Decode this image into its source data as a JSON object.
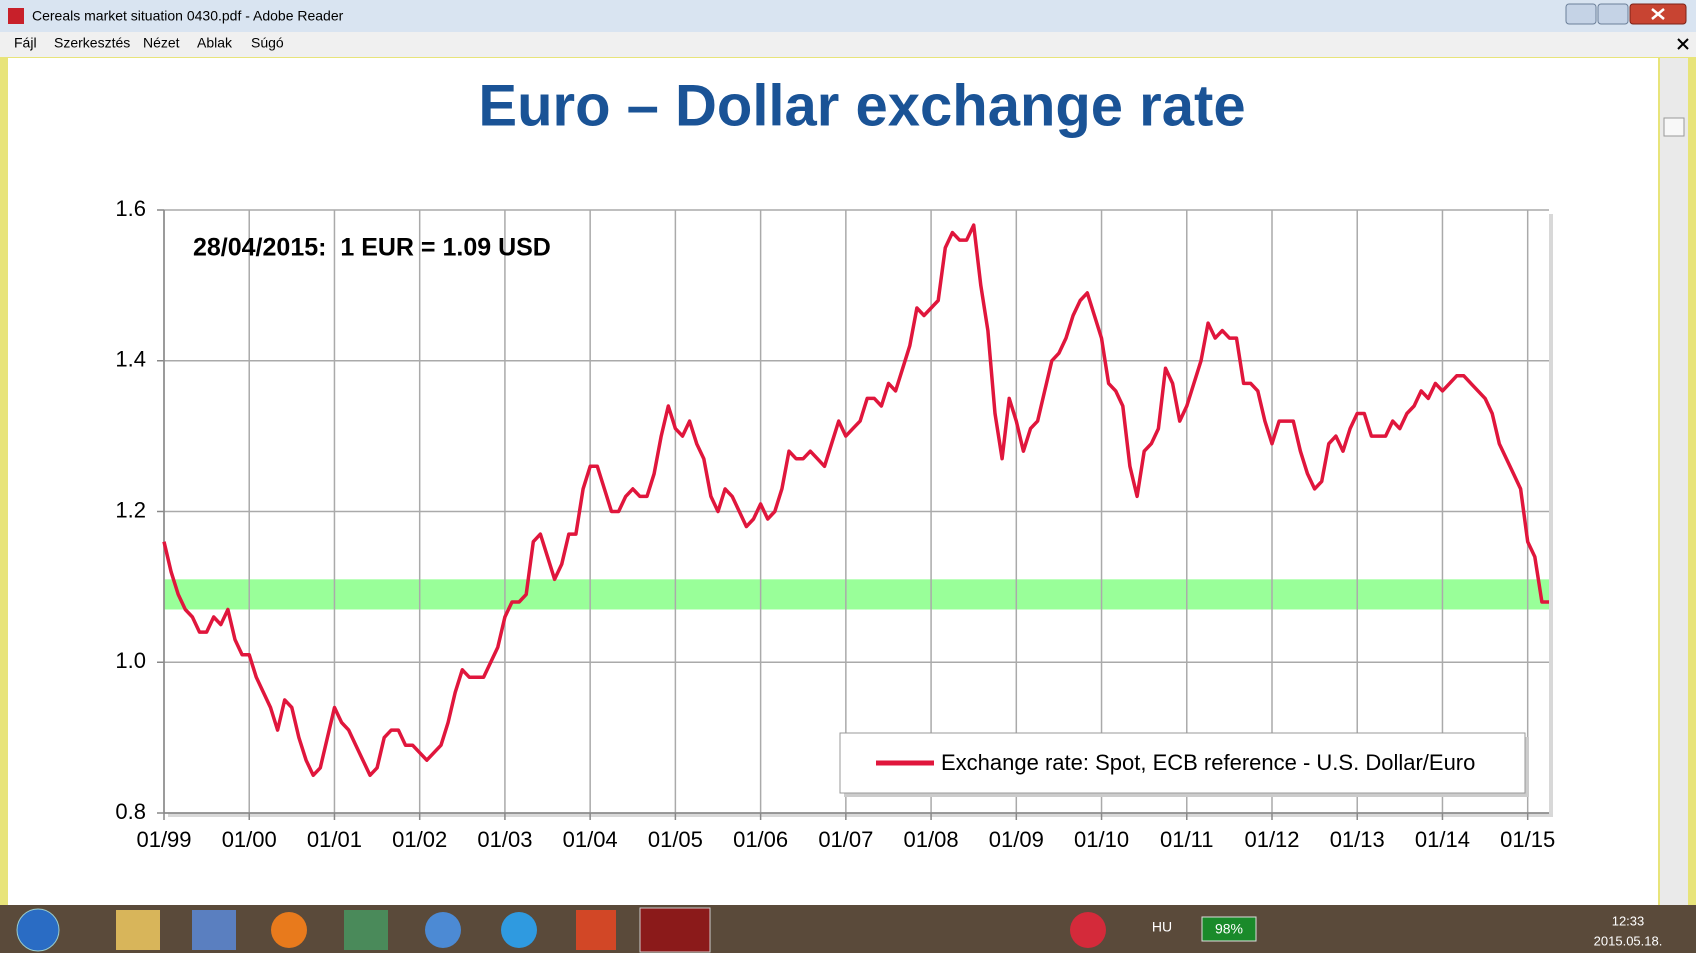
{
  "window": {
    "title": "Cereals market situation 0430.pdf - Adobe Reader"
  },
  "menu": [
    "Fájl",
    "Szerkesztés",
    "Nézet",
    "Ablak",
    "Súgó"
  ],
  "taskbar": {
    "language": "HU",
    "battery": "98%",
    "time": "12:33",
    "date": "2015.05.18."
  },
  "chart_data": {
    "type": "line",
    "title": "Euro – Dollar exchange rate",
    "annotation": "28/04/2015:  1 EUR = 1.09 USD",
    "band": [
      1.07,
      1.11
    ],
    "band_color": "#99ff99",
    "grid": true,
    "legend": "bottom-right",
    "ylim": [
      0.8,
      1.6
    ],
    "yticks": [
      0.8,
      {
        "value": 1,
        "label": "1.0"
      },
      1.2,
      1.4,
      1.6
    ],
    "xlim": [
      "1999-01",
      "2015-04"
    ],
    "xticks": [
      {
        "value": "1999-01",
        "label": "01/99"
      },
      {
        "value": "2000-01",
        "label": "01/00"
      },
      {
        "value": "2001-01",
        "label": "01/01"
      },
      {
        "value": "2002-01",
        "label": "01/02"
      },
      {
        "value": "2003-01",
        "label": "01/03"
      },
      {
        "value": "2004-01",
        "label": "01/04"
      },
      {
        "value": "2005-01",
        "label": "01/05"
      },
      {
        "value": "2006-01",
        "label": "01/06"
      },
      {
        "value": "2007-01",
        "label": "01/07"
      },
      {
        "value": "2008-01",
        "label": "01/08"
      },
      {
        "value": "2009-01",
        "label": "01/09"
      },
      {
        "value": "2010-01",
        "label": "01/10"
      },
      {
        "value": "2011-01",
        "label": "01/11"
      },
      {
        "value": "2012-01",
        "label": "01/12"
      },
      {
        "value": "2013-01",
        "label": "01/13"
      },
      {
        "value": "2014-01",
        "label": "01/14"
      },
      {
        "value": "2015-01",
        "label": "01/15"
      }
    ],
    "x": [
      "1999-01",
      "1999-02",
      "1999-03",
      "1999-04",
      "1999-05",
      "1999-06",
      "1999-07",
      "1999-08",
      "1999-09",
      "1999-10",
      "1999-11",
      "1999-12",
      "2000-01",
      "2000-02",
      "2000-03",
      "2000-04",
      "2000-05",
      "2000-06",
      "2000-07",
      "2000-08",
      "2000-09",
      "2000-10",
      "2000-11",
      "2000-12",
      "2001-01",
      "2001-02",
      "2001-03",
      "2001-04",
      "2001-05",
      "2001-06",
      "2001-07",
      "2001-08",
      "2001-09",
      "2001-10",
      "2001-11",
      "2001-12",
      "2002-01",
      "2002-02",
      "2002-03",
      "2002-04",
      "2002-05",
      "2002-06",
      "2002-07",
      "2002-08",
      "2002-09",
      "2002-10",
      "2002-11",
      "2002-12",
      "2003-01",
      "2003-02",
      "2003-03",
      "2003-04",
      "2003-05",
      "2003-06",
      "2003-07",
      "2003-08",
      "2003-09",
      "2003-10",
      "2003-11",
      "2003-12",
      "2004-01",
      "2004-02",
      "2004-03",
      "2004-04",
      "2004-05",
      "2004-06",
      "2004-07",
      "2004-08",
      "2004-09",
      "2004-10",
      "2004-11",
      "2004-12",
      "2005-01",
      "2005-02",
      "2005-03",
      "2005-04",
      "2005-05",
      "2005-06",
      "2005-07",
      "2005-08",
      "2005-09",
      "2005-10",
      "2005-11",
      "2005-12",
      "2006-01",
      "2006-02",
      "2006-03",
      "2006-04",
      "2006-05",
      "2006-06",
      "2006-07",
      "2006-08",
      "2006-09",
      "2006-10",
      "2006-11",
      "2006-12",
      "2007-01",
      "2007-02",
      "2007-03",
      "2007-04",
      "2007-05",
      "2007-06",
      "2007-07",
      "2007-08",
      "2007-09",
      "2007-10",
      "2007-11",
      "2007-12",
      "2008-01",
      "2008-02",
      "2008-03",
      "2008-04",
      "2008-05",
      "2008-06",
      "2008-07",
      "2008-08",
      "2008-09",
      "2008-10",
      "2008-11",
      "2008-12",
      "2009-01",
      "2009-02",
      "2009-03",
      "2009-04",
      "2009-05",
      "2009-06",
      "2009-07",
      "2009-08",
      "2009-09",
      "2009-10",
      "2009-11",
      "2009-12",
      "2010-01",
      "2010-02",
      "2010-03",
      "2010-04",
      "2010-05",
      "2010-06",
      "2010-07",
      "2010-08",
      "2010-09",
      "2010-10",
      "2010-11",
      "2010-12",
      "2011-01",
      "2011-02",
      "2011-03",
      "2011-04",
      "2011-05",
      "2011-06",
      "2011-07",
      "2011-08",
      "2011-09",
      "2011-10",
      "2011-11",
      "2011-12",
      "2012-01",
      "2012-02",
      "2012-03",
      "2012-04",
      "2012-05",
      "2012-06",
      "2012-07",
      "2012-08",
      "2012-09",
      "2012-10",
      "2012-11",
      "2012-12",
      "2013-01",
      "2013-02",
      "2013-03",
      "2013-04",
      "2013-05",
      "2013-06",
      "2013-07",
      "2013-08",
      "2013-09",
      "2013-10",
      "2013-11",
      "2013-12",
      "2014-01",
      "2014-02",
      "2014-03",
      "2014-04",
      "2014-05",
      "2014-06",
      "2014-07",
      "2014-08",
      "2014-09",
      "2014-10",
      "2014-11",
      "2014-12",
      "2015-01",
      "2015-02",
      "2015-03",
      "2015-04"
    ],
    "series": [
      {
        "name": "Exchange rate: Spot, ECB reference - U.S. Dollar/Euro",
        "color": "#e0163c",
        "values": [
          1.16,
          1.12,
          1.09,
          1.07,
          1.06,
          1.04,
          1.04,
          1.06,
          1.05,
          1.07,
          1.03,
          1.01,
          1.01,
          0.98,
          0.96,
          0.94,
          0.91,
          0.95,
          0.94,
          0.9,
          0.87,
          0.85,
          0.86,
          0.9,
          0.94,
          0.92,
          0.91,
          0.89,
          0.87,
          0.85,
          0.86,
          0.9,
          0.91,
          0.91,
          0.89,
          0.89,
          0.88,
          0.87,
          0.88,
          0.89,
          0.92,
          0.96,
          0.99,
          0.98,
          0.98,
          0.98,
          1.0,
          1.02,
          1.06,
          1.08,
          1.08,
          1.09,
          1.16,
          1.17,
          1.14,
          1.11,
          1.13,
          1.17,
          1.17,
          1.23,
          1.26,
          1.26,
          1.23,
          1.2,
          1.2,
          1.22,
          1.23,
          1.22,
          1.22,
          1.25,
          1.3,
          1.34,
          1.31,
          1.3,
          1.32,
          1.29,
          1.27,
          1.22,
          1.2,
          1.23,
          1.22,
          1.2,
          1.18,
          1.19,
          1.21,
          1.19,
          1.2,
          1.23,
          1.28,
          1.27,
          1.27,
          1.28,
          1.27,
          1.26,
          1.29,
          1.32,
          1.3,
          1.31,
          1.32,
          1.35,
          1.35,
          1.34,
          1.37,
          1.36,
          1.39,
          1.42,
          1.47,
          1.46,
          1.47,
          1.48,
          1.55,
          1.57,
          1.56,
          1.56,
          1.58,
          1.5,
          1.44,
          1.33,
          1.27,
          1.35,
          1.32,
          1.28,
          1.31,
          1.32,
          1.36,
          1.4,
          1.41,
          1.43,
          1.46,
          1.48,
          1.49,
          1.46,
          1.43,
          1.37,
          1.36,
          1.34,
          1.26,
          1.22,
          1.28,
          1.29,
          1.31,
          1.39,
          1.37,
          1.32,
          1.34,
          1.37,
          1.4,
          1.45,
          1.43,
          1.44,
          1.43,
          1.43,
          1.37,
          1.37,
          1.36,
          1.32,
          1.29,
          1.32,
          1.32,
          1.32,
          1.28,
          1.25,
          1.23,
          1.24,
          1.29,
          1.3,
          1.28,
          1.31,
          1.33,
          1.33,
          1.3,
          1.3,
          1.3,
          1.32,
          1.31,
          1.33,
          1.34,
          1.36,
          1.35,
          1.37,
          1.36,
          1.37,
          1.38,
          1.38,
          1.37,
          1.36,
          1.35,
          1.33,
          1.29,
          1.27,
          1.25,
          1.23,
          1.16,
          1.14,
          1.08,
          1.08
        ]
      }
    ]
  }
}
